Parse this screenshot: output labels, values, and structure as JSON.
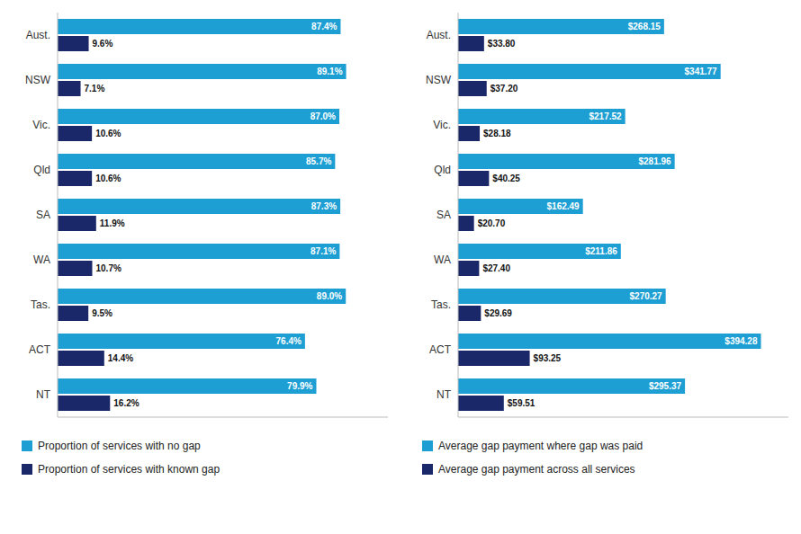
{
  "chart_data": [
    {
      "type": "bar",
      "orientation": "horizontal",
      "categories": [
        "Aust.",
        "NSW",
        "Vic.",
        "Qld",
        "SA",
        "WA",
        "Tas.",
        "ACT",
        "NT"
      ],
      "series": [
        {
          "name": "Proportion of services with no gap",
          "color": "#1e9fd4",
          "values": [
            87.4,
            89.1,
            87.0,
            85.7,
            87.3,
            87.1,
            89.0,
            76.4,
            79.9
          ],
          "value_labels": [
            "87.4%",
            "89.1%",
            "87.0%",
            "85.7%",
            "87.3%",
            "87.1%",
            "89.0%",
            "76.4%",
            "79.9%"
          ]
        },
        {
          "name": "Proportion of services with known gap",
          "color": "#1a2869",
          "values": [
            9.6,
            7.1,
            10.6,
            10.6,
            11.9,
            10.7,
            9.5,
            14.4,
            16.2
          ],
          "value_labels": [
            "9.6%",
            "7.1%",
            "10.6%",
            "10.6%",
            "11.9%",
            "10.7%",
            "9.5%",
            "14.4%",
            "16.2%"
          ]
        }
      ],
      "xlim": [
        0,
        102
      ],
      "grid": false,
      "legend": "bottom",
      "data_labels": true,
      "tick_labels": "y"
    },
    {
      "type": "bar",
      "orientation": "horizontal",
      "categories": [
        "Aust.",
        "NSW",
        "Vic.",
        "Qld",
        "SA",
        "WA",
        "Tas.",
        "ACT",
        "NT"
      ],
      "series": [
        {
          "name": "Average gap payment where gap was paid",
          "color": "#1e9fd4",
          "values": [
            268.15,
            341.77,
            217.52,
            281.96,
            162.49,
            211.86,
            270.27,
            394.28,
            295.37
          ],
          "value_labels": [
            "$268.15",
            "$341.77",
            "$217.52",
            "$281.96",
            "$162.49",
            "$211.86",
            "$270.27",
            "$394.28",
            "$295.37"
          ]
        },
        {
          "name": "Average gap payment across all services",
          "color": "#1a2869",
          "values": [
            33.8,
            37.2,
            28.18,
            40.25,
            20.7,
            27.4,
            29.69,
            93.25,
            59.51
          ],
          "value_labels": [
            "$33.80",
            "$37.20",
            "$28.18",
            "$40.25",
            "$20.70",
            "$27.40",
            "$29.69",
            "$93.25",
            "$59.51"
          ]
        }
      ],
      "xlim": [
        0,
        430
      ],
      "grid": false,
      "legend": "bottom",
      "data_labels": true,
      "tick_labels": "y"
    }
  ]
}
